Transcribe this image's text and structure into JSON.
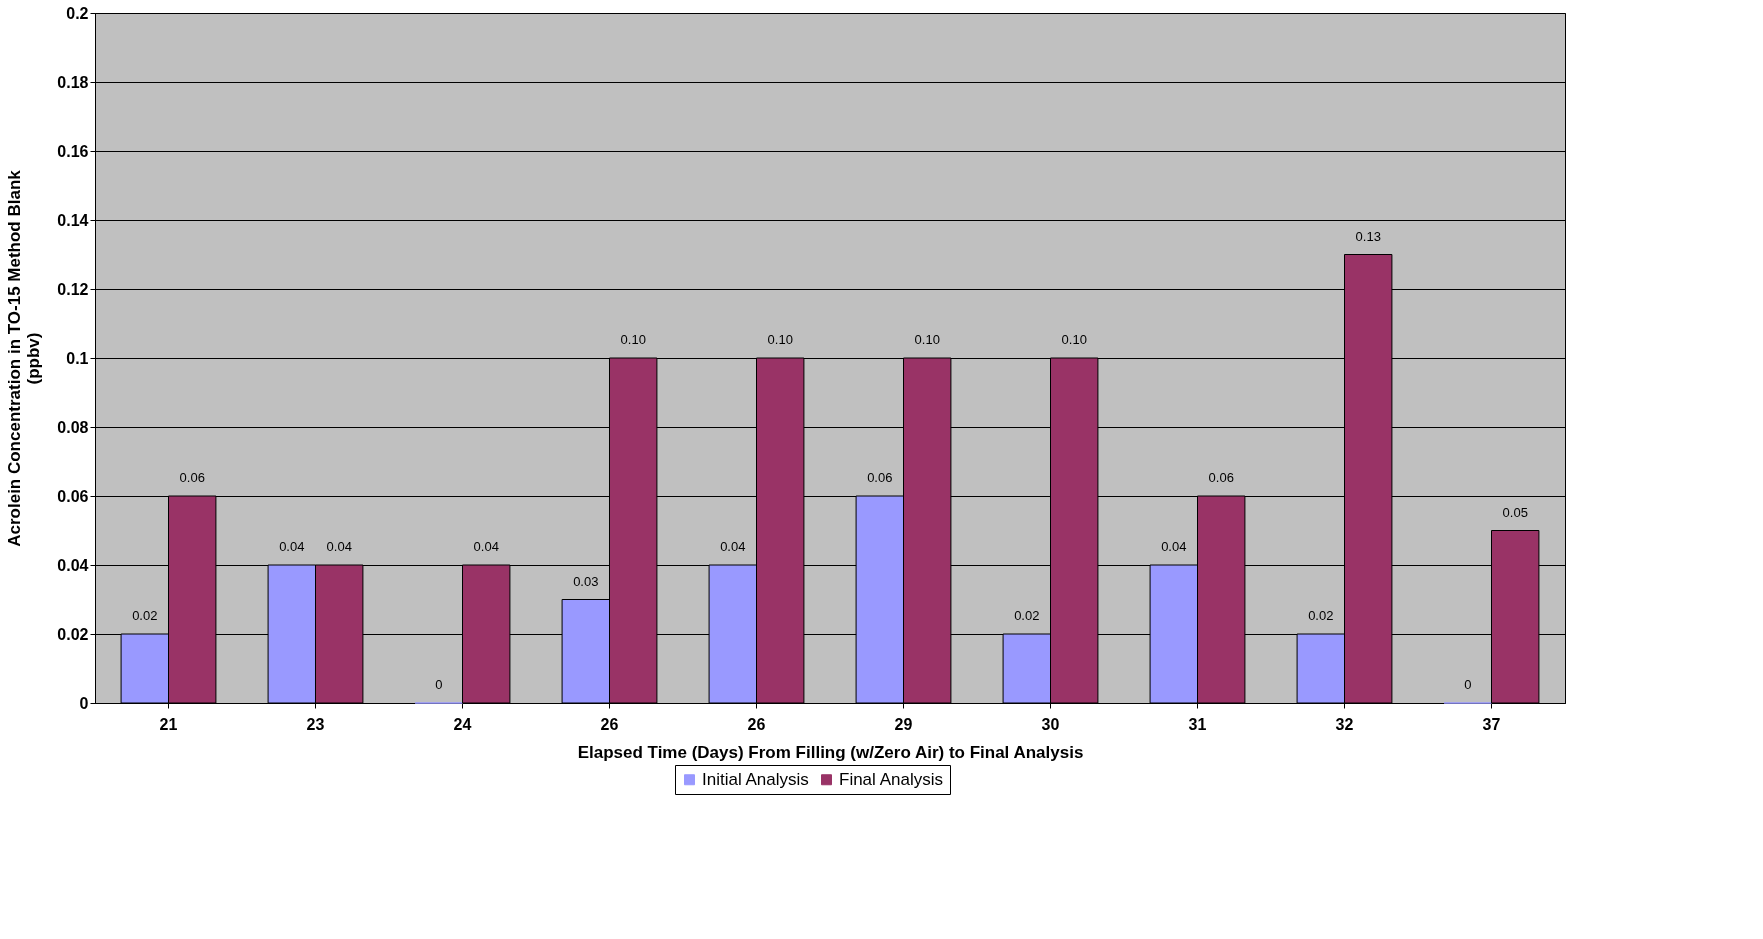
{
  "chart_data": {
    "type": "bar",
    "xlabel": "Elapsed Time (Days) From Filling (w/Zero Air) to Final Analysis",
    "ylabel": "Acrolein Concentration in TO-15 Method Blank\n(ppbv)",
    "categories": [
      "21",
      "23",
      "24",
      "26",
      "26",
      "29",
      "30",
      "31",
      "32",
      "37"
    ],
    "series": [
      {
        "name": "Initial Analysis",
        "color": "#9999ff",
        "values": [
          0.02,
          0.04,
          0,
          0.03,
          0.04,
          0.06,
          0.02,
          0.04,
          0.02,
          0
        ],
        "value_labels": [
          "0.02",
          "0.04",
          "0",
          "0.03",
          "0.04",
          "0.06",
          "0.02",
          "0.04",
          "0.02",
          "0"
        ]
      },
      {
        "name": "Final Analysis",
        "color": "#993366",
        "values": [
          0.06,
          0.04,
          0.04,
          0.1,
          0.1,
          0.1,
          0.1,
          0.06,
          0.13,
          0.05
        ],
        "value_labels": [
          "0.06",
          "0.04",
          "0.04",
          "0.10",
          "0.10",
          "0.10",
          "0.10",
          "0.06",
          "0.13",
          "0.05"
        ]
      }
    ],
    "ylim": [
      0,
      0.2
    ],
    "yticks": [
      0,
      0.02,
      0.04,
      0.06,
      0.08,
      0.1,
      0.12,
      0.14,
      0.16,
      0.18,
      0.2
    ],
    "grid": "y",
    "legend": "bottom"
  }
}
